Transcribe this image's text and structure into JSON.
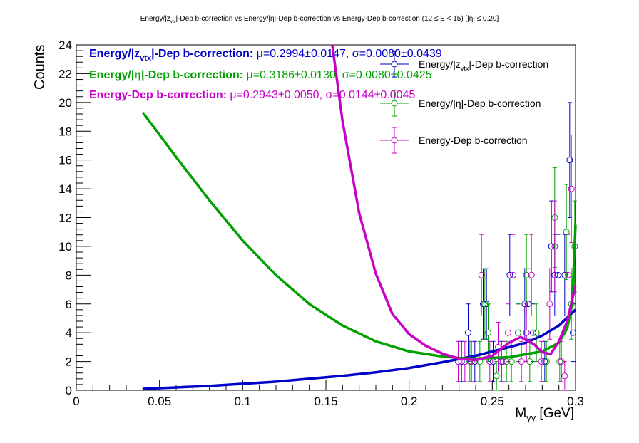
{
  "chart_data": {
    "type": "scatter",
    "title": "Energy/|z_vtx|-Dep b-correction vs Energy/|η|-Dep b-correction vs Energy-Dep b-correction   (12 ≤ E < 15)   [|η| ≤ 0.20]",
    "title_parts": {
      "a": "Energy/|z",
      "a_sub": "vtx",
      "b": "|-Dep b-correction vs Energy/|η|-Dep b-correction vs Energy-Dep b-correction   (12 ≤ E < 15)   [|η| ≤ 0.20]"
    },
    "xlabel": "M",
    "xlabel_sub": "γγ",
    "xlabel_unit": " [GeV]",
    "ylabel": "Counts",
    "xlim": [
      0,
      0.3
    ],
    "ylim": [
      0,
      24
    ],
    "xticks": [
      0,
      0.05,
      0.1,
      0.15,
      0.2,
      0.25,
      0.3
    ],
    "xtick_labels": [
      "0",
      "0.05",
      "0.1",
      "0.15",
      "0.2",
      "0.25",
      "0.3"
    ],
    "yticks": [
      0,
      2,
      4,
      6,
      8,
      10,
      12,
      14,
      16,
      18,
      20,
      22,
      24
    ],
    "ytick_labels": [
      "0",
      "2",
      "4",
      "6",
      "8",
      "10",
      "12",
      "14",
      "16",
      "18",
      "20",
      "22",
      "24"
    ],
    "grid": false,
    "legend_position": "top-right",
    "fit_results": [
      {
        "lead": "Energy/|z",
        "sub": "vtx",
        "rest": "|-Dep b-correction: ",
        "stats": "μ=0.2994±0.0147, σ=0.0080±0.0439",
        "color": "#0000c8"
      },
      {
        "lead": "Energy/|η|-Dep b-correction: ",
        "sub": "",
        "rest": "",
        "stats": "μ=0.3186±0.0130, σ=0.0080±0.0425",
        "color": "#00a000"
      },
      {
        "lead": "Energy-Dep b-correction: ",
        "sub": "",
        "rest": "",
        "stats": "μ=0.2943±0.0050, σ=0.0144±0.0045",
        "color": "#c800c8"
      }
    ],
    "series": [
      {
        "name": "Energy/|z_vtx|-Dep b-correction",
        "legend_parts": {
          "a": "Energy/|z",
          "sub": "vtx",
          "b": "|-Dep b-correction"
        },
        "color": "#0000c8",
        "points": [
          {
            "x": 0.2315,
            "y": 2,
            "err": 1.4
          },
          {
            "x": 0.2355,
            "y": 4,
            "err": 2.0
          },
          {
            "x": 0.2395,
            "y": 2,
            "err": 1.4
          },
          {
            "x": 0.2445,
            "y": 6,
            "err": 2.45
          },
          {
            "x": 0.2465,
            "y": 6,
            "err": 2.45
          },
          {
            "x": 0.2505,
            "y": 2,
            "err": 1.4
          },
          {
            "x": 0.2555,
            "y": 2,
            "err": 1.4
          },
          {
            "x": 0.2605,
            "y": 8,
            "err": 2.83
          },
          {
            "x": 0.2655,
            "y": 4,
            "err": 2.0
          },
          {
            "x": 0.2695,
            "y": 6,
            "err": 2.45
          },
          {
            "x": 0.2715,
            "y": 6,
            "err": 2.45
          },
          {
            "x": 0.2745,
            "y": 4,
            "err": 2.0
          },
          {
            "x": 0.2815,
            "y": 2,
            "err": 1.4
          },
          {
            "x": 0.2855,
            "y": 10,
            "err": 3.16
          },
          {
            "x": 0.2875,
            "y": 8,
            "err": 2.83
          },
          {
            "x": 0.2895,
            "y": 8,
            "err": 2.83
          },
          {
            "x": 0.2935,
            "y": 8,
            "err": 2.83
          },
          {
            "x": 0.2965,
            "y": 16,
            "err": 4.0
          },
          {
            "x": 0.2985,
            "y": 4,
            "err": 2.0
          }
        ],
        "fit_curve": [
          [
            0.04,
            0.1
          ],
          [
            0.06,
            0.2
          ],
          [
            0.08,
            0.3
          ],
          [
            0.1,
            0.45
          ],
          [
            0.12,
            0.6
          ],
          [
            0.14,
            0.8
          ],
          [
            0.16,
            1.0
          ],
          [
            0.18,
            1.25
          ],
          [
            0.2,
            1.55
          ],
          [
            0.22,
            1.95
          ],
          [
            0.24,
            2.4
          ],
          [
            0.26,
            3.0
          ],
          [
            0.27,
            3.3
          ],
          [
            0.28,
            3.8
          ],
          [
            0.29,
            4.5
          ],
          [
            0.3,
            5.6
          ]
        ]
      },
      {
        "name": "Energy/|η|-Dep b-correction",
        "legend_parts": {
          "a": "Energy/|η|-Dep b-correction",
          "sub": "",
          "b": ""
        },
        "color": "#00a000",
        "points": [
          {
            "x": 0.2365,
            "y": 2,
            "err": 1.4
          },
          {
            "x": 0.2425,
            "y": 2,
            "err": 1.4
          },
          {
            "x": 0.2455,
            "y": 6,
            "err": 2.45
          },
          {
            "x": 0.2475,
            "y": 4,
            "err": 2.0
          },
          {
            "x": 0.2525,
            "y": 1,
            "err": 1.0
          },
          {
            "x": 0.2585,
            "y": 2,
            "err": 1.4
          },
          {
            "x": 0.2615,
            "y": 2,
            "err": 1.4
          },
          {
            "x": 0.2655,
            "y": 4,
            "err": 2.0
          },
          {
            "x": 0.2705,
            "y": 8,
            "err": 2.83
          },
          {
            "x": 0.2725,
            "y": 2,
            "err": 1.4
          },
          {
            "x": 0.2765,
            "y": 4,
            "err": 2.0
          },
          {
            "x": 0.2825,
            "y": 2,
            "err": 1.4
          },
          {
            "x": 0.2875,
            "y": 12,
            "err": 3.46
          },
          {
            "x": 0.2905,
            "y": 2,
            "err": 1.4
          },
          {
            "x": 0.2945,
            "y": 11,
            "err": 3.3
          },
          {
            "x": 0.2975,
            "y": 6,
            "err": 2.45
          },
          {
            "x": 0.2995,
            "y": 10,
            "err": 3.16
          }
        ],
        "fit_curve": [
          [
            0.04,
            19.3
          ],
          [
            0.06,
            16.2
          ],
          [
            0.08,
            13.2
          ],
          [
            0.1,
            10.4
          ],
          [
            0.12,
            8.0
          ],
          [
            0.14,
            6.0
          ],
          [
            0.16,
            4.5
          ],
          [
            0.18,
            3.4
          ],
          [
            0.2,
            2.7
          ],
          [
            0.22,
            2.35
          ],
          [
            0.23,
            2.25
          ],
          [
            0.24,
            2.2
          ],
          [
            0.26,
            2.3
          ],
          [
            0.28,
            2.7
          ],
          [
            0.29,
            3.3
          ],
          [
            0.295,
            4.3
          ],
          [
            0.298,
            6.0
          ],
          [
            0.3,
            11.5
          ]
        ]
      },
      {
        "name": "Energy-Dep b-correction",
        "legend_parts": {
          "a": "Energy-Dep b-correction",
          "sub": "",
          "b": ""
        },
        "color": "#c800c8",
        "points": [
          {
            "x": 0.2295,
            "y": 2,
            "err": 1.4
          },
          {
            "x": 0.2335,
            "y": 2,
            "err": 1.4
          },
          {
            "x": 0.2375,
            "y": 2,
            "err": 1.4
          },
          {
            "x": 0.2435,
            "y": 8,
            "err": 2.83
          },
          {
            "x": 0.2485,
            "y": 2,
            "err": 1.4
          },
          {
            "x": 0.2535,
            "y": 3,
            "err": 1.73
          },
          {
            "x": 0.2565,
            "y": 2,
            "err": 1.4
          },
          {
            "x": 0.2595,
            "y": 4,
            "err": 2.0
          },
          {
            "x": 0.2625,
            "y": 8,
            "err": 2.83
          },
          {
            "x": 0.2675,
            "y": 2,
            "err": 1.4
          },
          {
            "x": 0.2705,
            "y": 4,
            "err": 2.0
          },
          {
            "x": 0.2735,
            "y": 8,
            "err": 2.83
          },
          {
            "x": 0.2795,
            "y": 2,
            "err": 1.4
          },
          {
            "x": 0.2845,
            "y": 6,
            "err": 2.45
          },
          {
            "x": 0.2875,
            "y": 10,
            "err": 3.16
          },
          {
            "x": 0.2915,
            "y": 2,
            "err": 1.4
          },
          {
            "x": 0.2935,
            "y": 1,
            "err": 1.0
          },
          {
            "x": 0.2955,
            "y": 8,
            "err": 2.83
          },
          {
            "x": 0.2975,
            "y": 14,
            "err": 3.74
          }
        ],
        "fit_curve": [
          [
            0.1538,
            24.0
          ],
          [
            0.16,
            18.7
          ],
          [
            0.17,
            12.3
          ],
          [
            0.18,
            8.1
          ],
          [
            0.19,
            5.3
          ],
          [
            0.2,
            3.9
          ],
          [
            0.21,
            3.1
          ],
          [
            0.22,
            2.55
          ],
          [
            0.23,
            2.2
          ],
          [
            0.24,
            2.1
          ],
          [
            0.25,
            2.4
          ],
          [
            0.26,
            3.3
          ],
          [
            0.267,
            3.7
          ],
          [
            0.275,
            3.2
          ],
          [
            0.28,
            2.65
          ],
          [
            0.285,
            2.5
          ],
          [
            0.29,
            3.4
          ],
          [
            0.295,
            4.8
          ],
          [
            0.3,
            7.3
          ]
        ]
      }
    ]
  }
}
